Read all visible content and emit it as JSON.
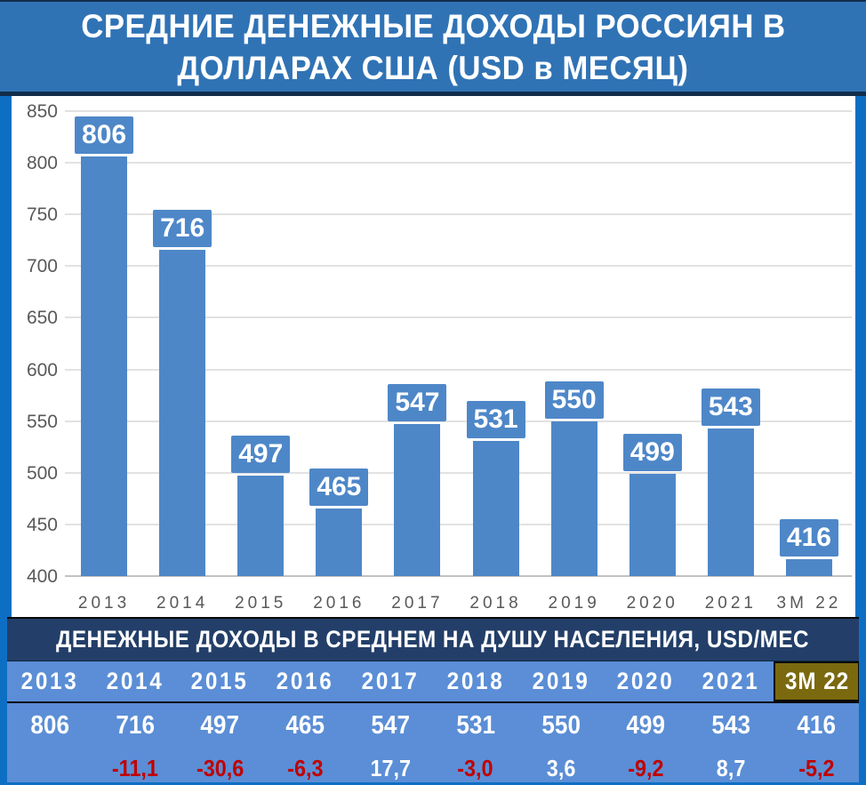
{
  "title": {
    "line1": "СРЕДНИЕ ДЕНЕЖНЫЕ ДОХОДЫ РОССИЯН В",
    "line2": "ДОЛЛАРАХ США (USD в МЕСЯЦ)"
  },
  "chart_data": {
    "type": "bar",
    "title": "СРЕДНИЕ ДЕНЕЖНЫЕ ДОХОДЫ РОССИЯН В ДОЛЛАРАХ США (USD в МЕСЯЦ)",
    "categories": [
      "2013",
      "2014",
      "2015",
      "2016",
      "2017",
      "2018",
      "2019",
      "2020",
      "2021",
      "3М 22"
    ],
    "values": [
      806,
      716,
      497,
      465,
      547,
      531,
      550,
      499,
      543,
      416
    ],
    "data_labels": [
      "806",
      "716",
      "497",
      "465",
      "547",
      "531",
      "550",
      "499",
      "543",
      "416"
    ],
    "xlabel": "",
    "ylabel": "",
    "ylim": [
      400,
      850
    ],
    "yticks": [
      850,
      800,
      750,
      700,
      650,
      600,
      550,
      500,
      450,
      400
    ],
    "grid": true,
    "legend": false
  },
  "table": {
    "header": "ДЕНЕЖНЫЕ ДОХОДЫ В СРЕДНЕМ НА ДУШУ НАСЕЛЕНИЯ, USD/МЕС",
    "years": [
      "2013",
      "2014",
      "2015",
      "2016",
      "2017",
      "2018",
      "2019",
      "2020",
      "2021",
      "3М 22"
    ],
    "values": [
      "806",
      "716",
      "497",
      "465",
      "547",
      "531",
      "550",
      "499",
      "543",
      "416"
    ],
    "changes": [
      "",
      "-11,1",
      "-30,6",
      "-6,3",
      "17,7",
      "-3,0",
      "3,6",
      "-9,2",
      "8,7",
      "-5,2"
    ]
  },
  "colors": {
    "title_bg": "#3073b5",
    "frame_blue": "#0d6fc4",
    "navy_line": "#132c4a",
    "table_header_bg": "#233f69",
    "table_row_bg": "#5b8ed6",
    "bar_blue": "#4e87c8",
    "gold_highlight": "#7a690f",
    "negative_red": "#c00000",
    "gridline_gray": "#e2e2e2",
    "axis_text_gray": "#595959"
  }
}
